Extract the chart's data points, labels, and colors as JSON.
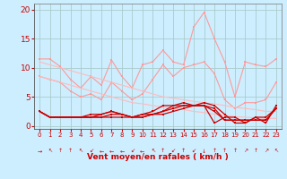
{
  "x": [
    0,
    1,
    2,
    3,
    4,
    5,
    6,
    7,
    8,
    9,
    10,
    11,
    12,
    13,
    14,
    15,
    16,
    17,
    18,
    19,
    20,
    21,
    22,
    23
  ],
  "line_spiky1": [
    11.5,
    11.5,
    10.2,
    8.0,
    6.5,
    8.5,
    7.0,
    11.3,
    8.5,
    6.5,
    10.5,
    11.0,
    13.0,
    11.0,
    10.5,
    17.0,
    19.5,
    15.0,
    11.0,
    5.0,
    11.0,
    10.5,
    10.2,
    11.5
  ],
  "line_spiky2": [
    8.5,
    8.0,
    7.5,
    6.0,
    5.0,
    5.5,
    4.5,
    7.5,
    6.0,
    4.5,
    5.5,
    8.0,
    10.5,
    8.5,
    10.0,
    10.5,
    11.0,
    9.0,
    4.5,
    3.0,
    4.0,
    4.0,
    4.5,
    7.5
  ],
  "line_trend1": [
    11.0,
    10.5,
    10.0,
    9.5,
    9.0,
    8.5,
    8.0,
    7.5,
    7.0,
    6.5,
    6.0,
    5.5,
    5.0,
    4.8,
    4.5,
    4.2,
    4.0,
    3.8,
    3.5,
    3.2,
    3.0,
    2.8,
    2.5,
    2.5
  ],
  "line_trend2": [
    8.5,
    8.0,
    7.5,
    7.0,
    6.5,
    6.0,
    5.5,
    5.0,
    4.5,
    4.0,
    3.8,
    3.5,
    3.2,
    3.0,
    2.8,
    2.5,
    2.3,
    2.0,
    1.8,
    1.6,
    1.5,
    1.4,
    1.3,
    1.3
  ],
  "line_dark1": [
    2.5,
    1.5,
    1.5,
    1.5,
    1.5,
    2.0,
    2.0,
    2.5,
    2.0,
    1.5,
    2.0,
    2.5,
    3.5,
    3.5,
    3.5,
    3.5,
    3.5,
    0.5,
    1.5,
    1.5,
    0.5,
    1.5,
    1.5,
    3.0
  ],
  "line_dark2": [
    2.5,
    1.5,
    1.5,
    1.5,
    1.5,
    1.5,
    2.0,
    2.5,
    2.0,
    1.5,
    2.0,
    2.0,
    2.5,
    3.5,
    4.0,
    3.5,
    4.0,
    3.5,
    2.0,
    0.5,
    0.5,
    1.5,
    0.5,
    3.5
  ],
  "line_dark3": [
    2.5,
    1.5,
    1.5,
    1.5,
    1.5,
    1.5,
    1.5,
    2.0,
    2.0,
    1.5,
    1.5,
    2.0,
    2.5,
    3.0,
    3.5,
    3.5,
    3.5,
    3.0,
    1.0,
    1.0,
    1.0,
    1.0,
    1.0,
    3.0
  ],
  "line_dark4": [
    2.5,
    1.5,
    1.5,
    1.5,
    1.5,
    1.5,
    1.5,
    1.5,
    1.5,
    1.5,
    1.5,
    2.0,
    2.0,
    2.5,
    3.0,
    3.5,
    3.5,
    2.5,
    1.0,
    1.0,
    1.0,
    1.0,
    1.0,
    3.0
  ],
  "bg_color": "#cceeff",
  "grid_color": "#aacccc",
  "color_pink": "#ff9999",
  "color_lightpink": "#ffbbbb",
  "color_dark": "#cc0000",
  "xlabel": "Vent moyen/en rafales ( km/h )",
  "arrows": [
    "→",
    "↖",
    "↑",
    "↑",
    "↖",
    "↙",
    "←",
    "←",
    "←",
    "↙",
    "←",
    "↖",
    "↑",
    "↙",
    "↑",
    "↙",
    "↓",
    "↑",
    "↑",
    "↑",
    "↗",
    "↑",
    "↗",
    "↖"
  ],
  "xlim": [
    -0.5,
    23.5
  ],
  "ylim": [
    -0.5,
    21.0
  ]
}
